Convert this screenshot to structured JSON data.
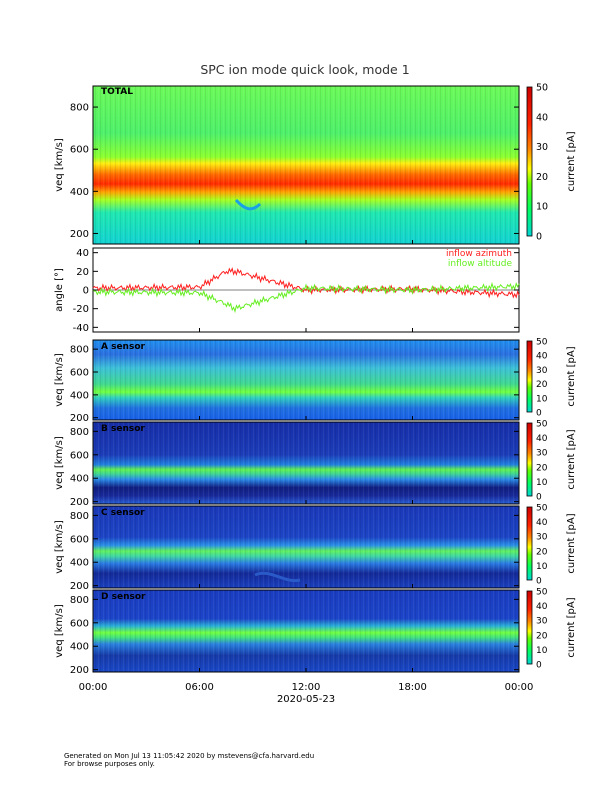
{
  "title": "SPC ion mode quick look, mode 1",
  "date_label": "2020-05-23",
  "x_ticks": [
    "00:00",
    "06:00",
    "12:00",
    "18:00",
    "00:00"
  ],
  "panels": [
    {
      "label": "TOTAL",
      "ylabel": "v_eq [km/s]",
      "yticks": [
        "200",
        "400",
        "600",
        "800"
      ],
      "ylim": [
        150,
        900
      ]
    },
    {
      "label": "",
      "ylabel": "angle [°]",
      "yticks": [
        "-40",
        "-20",
        "0",
        "20",
        "40"
      ],
      "ylim": [
        -45,
        45
      ]
    },
    {
      "label": "A sensor",
      "ylabel": "v_eq [km/s]",
      "yticks": [
        "200",
        "400",
        "600",
        "800"
      ],
      "ylim": [
        180,
        880
      ]
    },
    {
      "label": "B sensor",
      "ylabel": "v_eq [km/s]",
      "yticks": [
        "200",
        "400",
        "600",
        "800"
      ],
      "ylim": [
        180,
        880
      ]
    },
    {
      "label": "C sensor",
      "ylabel": "v_eq [km/s]",
      "yticks": [
        "200",
        "400",
        "600",
        "800"
      ],
      "ylim": [
        180,
        880
      ]
    },
    {
      "label": "D sensor",
      "ylabel": "v_eq [km/s]",
      "yticks": [
        "200",
        "400",
        "600",
        "800"
      ],
      "ylim": [
        180,
        880
      ]
    }
  ],
  "colorbar": {
    "label": "current [pA]",
    "ticks": [
      "0",
      "10",
      "20",
      "30",
      "40",
      "50"
    ],
    "range": [
      0,
      50
    ]
  },
  "legend": [
    {
      "name": "inflow azimuth",
      "color": "#ff2020"
    },
    {
      "name": "inflow altitude",
      "color": "#66ee22"
    }
  ],
  "footer": {
    "line1": "Generated on Mon Jul 13 11:05:42 2020 by mstevens@cfa.harvard.edu",
    "line2": "For browse purposes only."
  },
  "chart_data": {
    "type": "heatmap",
    "title": "SPC ion mode quick look, mode 1",
    "x_range": [
      "2020-05-23 00:00",
      "2020-05-24 00:00"
    ],
    "xlabel": "2020-05-23",
    "colorbar_range_pA": [
      0,
      50
    ],
    "total_peak_velocity_kms": [
      {
        "time": "00:00",
        "v": 390
      },
      {
        "time": "06:00",
        "v": 380
      },
      {
        "time": "09:00",
        "v": 430
      },
      {
        "time": "12:00",
        "v": 400
      },
      {
        "time": "18:00",
        "v": 380
      },
      {
        "time": "24:00",
        "v": 360
      }
    ],
    "angle_series": [
      {
        "name": "inflow azimuth",
        "values": [
          [
            0,
            2
          ],
          [
            6,
            3
          ],
          [
            7.5,
            20
          ],
          [
            8,
            20
          ],
          [
            12,
            0
          ],
          [
            18,
            1
          ],
          [
            24,
            -5
          ]
        ]
      },
      {
        "name": "inflow altitude",
        "values": [
          [
            0,
            -2
          ],
          [
            6,
            -3
          ],
          [
            7.5,
            -15
          ],
          [
            8,
            -20
          ],
          [
            12,
            2
          ],
          [
            18,
            0
          ],
          [
            24,
            4
          ]
        ]
      }
    ],
    "angle_ylim": [
      -45,
      45
    ]
  }
}
